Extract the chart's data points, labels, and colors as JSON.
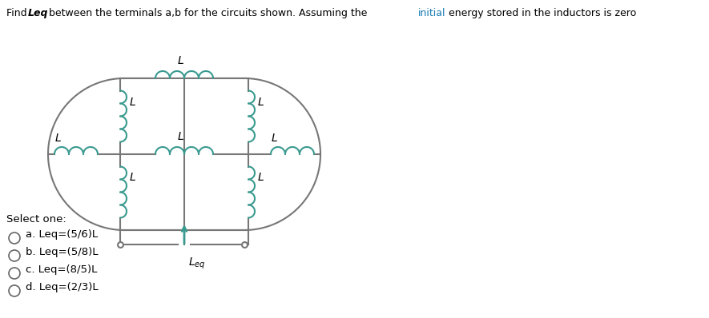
{
  "title_parts": [
    {
      "text": "Find ",
      "bold": false,
      "italic": false
    },
    {
      "text": "Leq",
      "bold": true,
      "italic": true
    },
    {
      "text": " between the terminals a,b for the circuits shown. Assuming the ",
      "bold": false,
      "italic": false
    },
    {
      "text": "initial",
      "bold": false,
      "italic": false,
      "color": "#1a7db5"
    },
    {
      "text": " energy stored in the inductors is zero",
      "bold": false,
      "italic": false
    }
  ],
  "bg_color": "#ffffff",
  "circuit_color": "#777777",
  "inductor_color": "#3a9a8f",
  "text_color": "#000000",
  "options": [
    "a. Leq=(5/6)L",
    "b. Leq=(5/8)L",
    "c. Leq=(8/5)L",
    "d. Leq=(2/3)L"
  ],
  "select_text": "Select one:"
}
